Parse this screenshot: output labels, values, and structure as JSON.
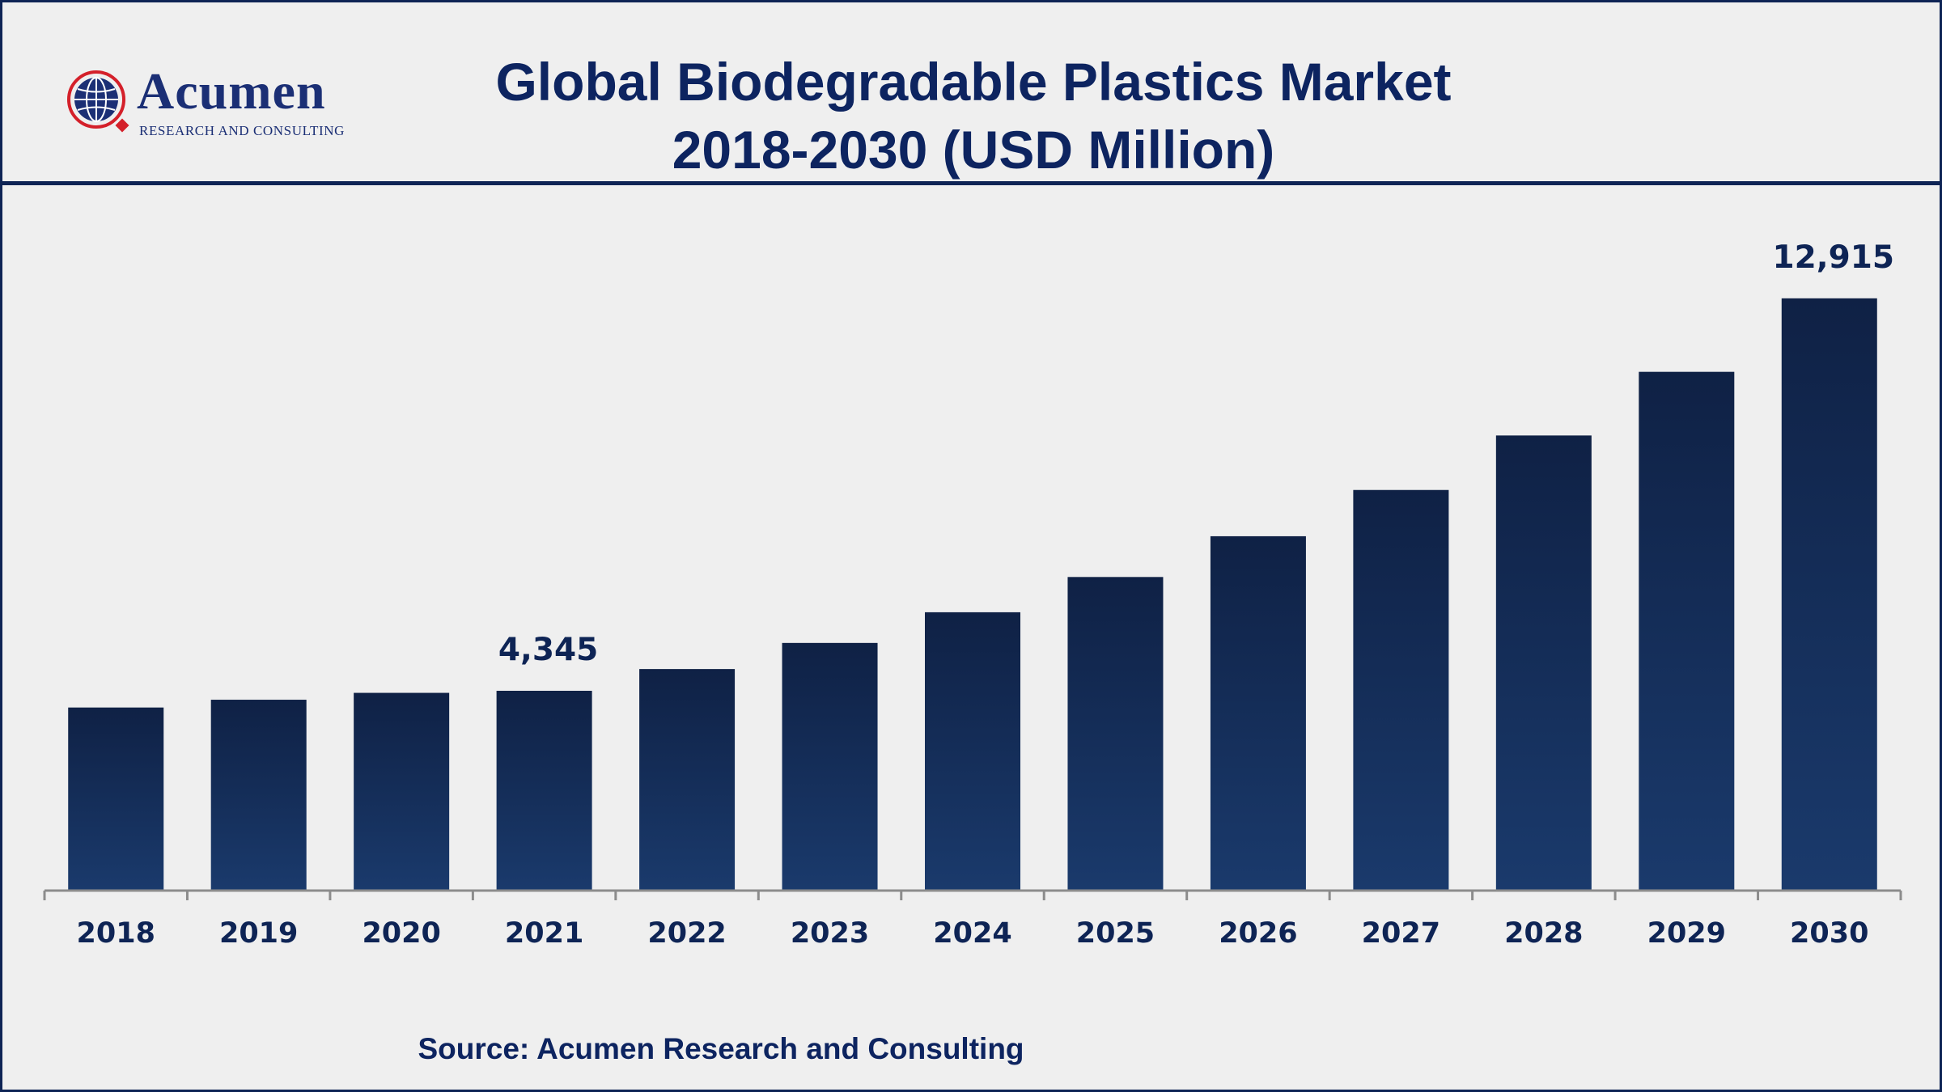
{
  "brand": {
    "name": "Acumen",
    "tagline": "RESEARCH AND CONSULTING",
    "colors": {
      "navy": "#0e2455",
      "red": "#d4202a"
    }
  },
  "title": {
    "line1": "Global Biodegradable Plastics Market",
    "line2": "2018-2030 (USD Million)"
  },
  "source": "Source: Acumen Research and Consulting",
  "chart_data": {
    "type": "bar",
    "title": "Global Biodegradable Plastics Market 2018-2030 (USD Million)",
    "xlabel": "",
    "ylabel": "",
    "categories": [
      "2018",
      "2019",
      "2020",
      "2021",
      "2022",
      "2023",
      "2024",
      "2025",
      "2026",
      "2027",
      "2028",
      "2029",
      "2030"
    ],
    "series": [
      {
        "values": [
          3980,
          4150,
          4300,
          4345,
          4820,
          5390,
          6060,
          6830,
          7720,
          8730,
          9920,
          11310,
          12915
        ],
        "labels": [
          "",
          "",
          "",
          "4,345",
          "",
          "",
          "",
          "",
          "",
          "",
          "",
          "",
          "12,915"
        ]
      }
    ],
    "ylim": [
      0,
      13000
    ],
    "grid": false,
    "legend": "none",
    "bar_gradient": {
      "top": "#0f2145",
      "bottom": "#1a3a6c"
    },
    "axis_color": "#8c8c8c",
    "label_color": "#0e2455"
  }
}
